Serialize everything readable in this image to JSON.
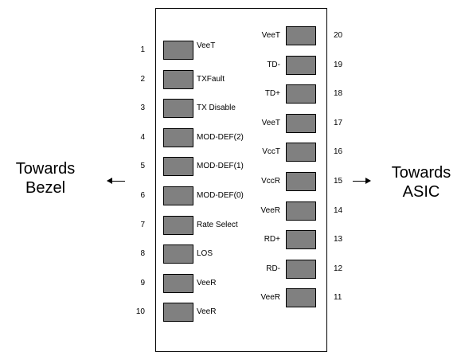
{
  "left_direction": {
    "line1": "Towards",
    "line2": "Bezel"
  },
  "right_direction": {
    "line1": "Towards",
    "line2": "ASIC"
  },
  "left_pins": [
    {
      "number": "1",
      "signal": "VeeT"
    },
    {
      "number": "2",
      "signal": "TXFault"
    },
    {
      "number": "3",
      "signal": "TX Disable"
    },
    {
      "number": "4",
      "signal": "MOD-DEF(2)"
    },
    {
      "number": "5",
      "signal": "MOD-DEF(1)"
    },
    {
      "number": "6",
      "signal": "MOD-DEF(0)"
    },
    {
      "number": "7",
      "signal": "Rate Select"
    },
    {
      "number": "8",
      "signal": "LOS"
    },
    {
      "number": "9",
      "signal": "VeeR"
    },
    {
      "number": "10",
      "signal": "VeeR"
    }
  ],
  "right_pins": [
    {
      "number": "20",
      "signal": "VeeT"
    },
    {
      "number": "19",
      "signal": "TD-"
    },
    {
      "number": "18",
      "signal": "TD+"
    },
    {
      "number": "17",
      "signal": "VeeT"
    },
    {
      "number": "16",
      "signal": "VccT"
    },
    {
      "number": "15",
      "signal": "VccR"
    },
    {
      "number": "14",
      "signal": "VeeR"
    },
    {
      "number": "13",
      "signal": "RD+"
    },
    {
      "number": "12",
      "signal": "RD-"
    },
    {
      "number": "11",
      "signal": "VeeR"
    }
  ],
  "colors": {
    "pad_fill": "#808080",
    "outline": "#000000",
    "background": "#ffffff"
  }
}
